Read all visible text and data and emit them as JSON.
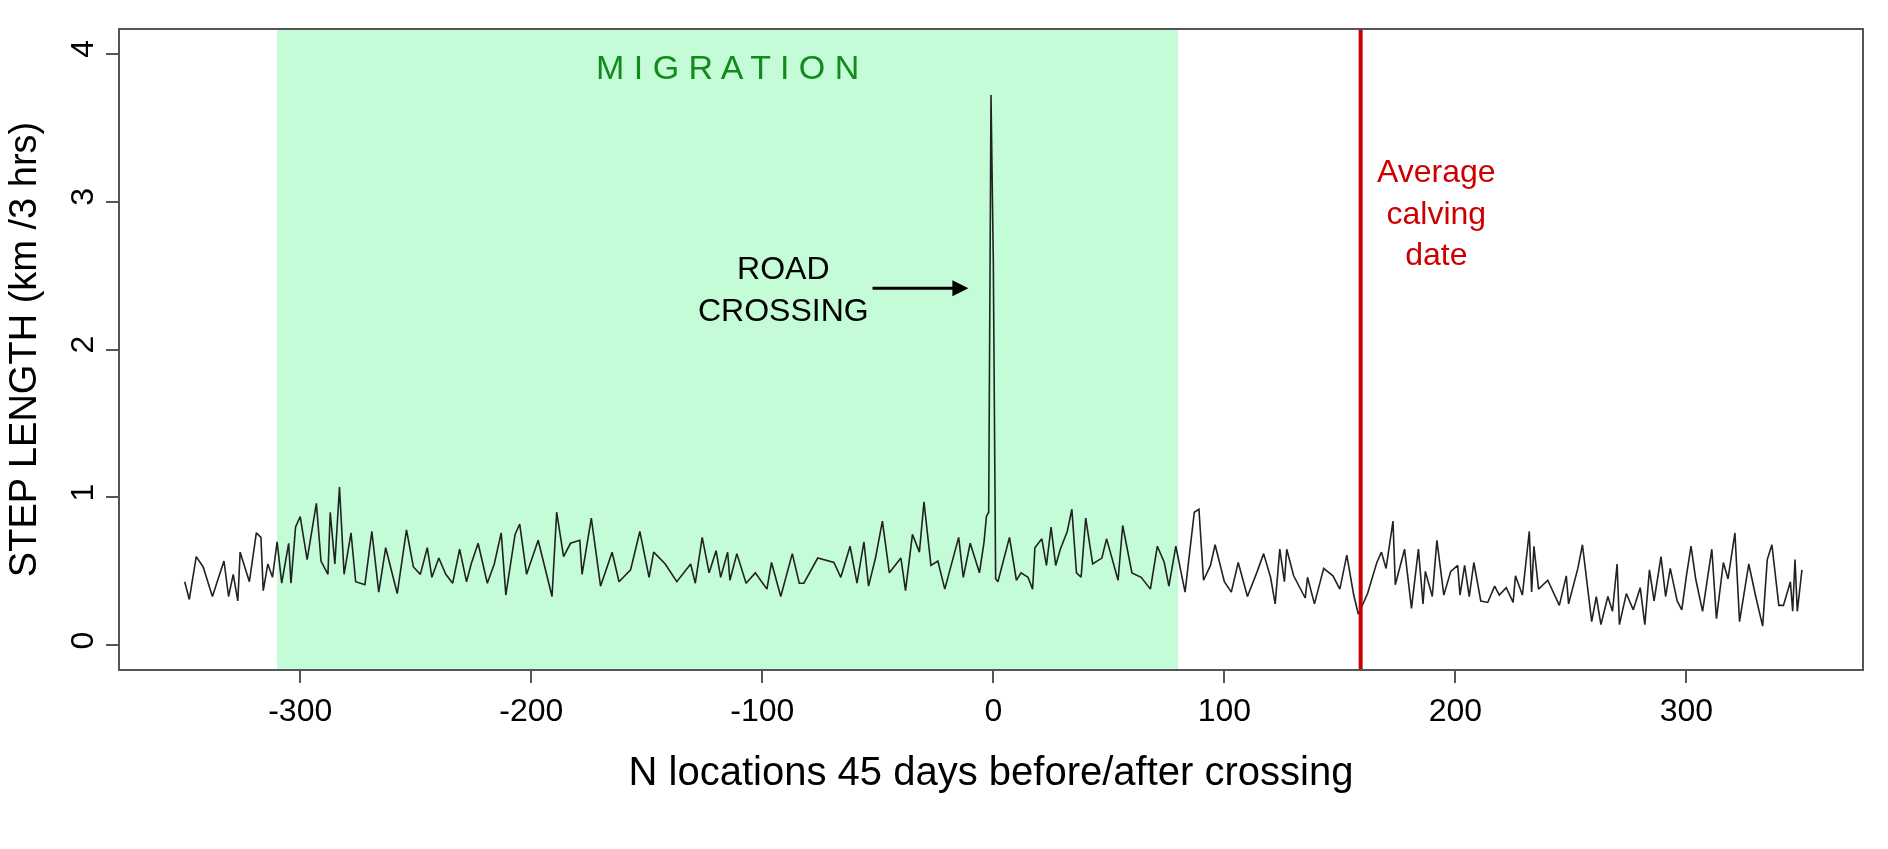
{
  "chart_data": {
    "type": "line",
    "xlabel": "N locations 45 days before/after crossing",
    "ylabel": "STEP LENGTH (km /3 hrs)",
    "xlim": [
      -378,
      376
    ],
    "xticks": [
      -300,
      -200,
      -100,
      0,
      100,
      200,
      300
    ],
    "ylim": [
      -0.16,
      4.16
    ],
    "yticks": [
      0,
      1,
      2,
      3,
      4
    ],
    "marker": "none",
    "line_style": "solid",
    "bands": [
      {
        "axis": "x",
        "from": -310,
        "to": 80,
        "label": "M I G R A T I O N",
        "color": "#c3fcd6"
      }
    ],
    "ref_lines": [
      {
        "axis": "x",
        "value": 159,
        "label": "Average\ncalving\ndate",
        "color": "#cc0000"
      }
    ],
    "annotations": [
      "ROAD\nCROSSING"
    ],
    "series": [
      {
        "color": "#222222",
        "x": [
          -350,
          -348,
          -345,
          -342,
          -338,
          -333,
          -331,
          -329,
          -327,
          -326,
          -322,
          -319,
          -317,
          -316,
          -314,
          -312,
          -310,
          -308,
          -305,
          -304,
          -302,
          -300,
          -297,
          -293,
          -291,
          -288,
          -287,
          -285,
          -283,
          -281,
          -278,
          -276,
          -272,
          -269,
          -266,
          -263,
          -258,
          -254,
          -251,
          -248,
          -245,
          -243,
          -240,
          -237,
          -234,
          -231,
          -228,
          -226,
          -223,
          -219,
          -216,
          -213,
          -211,
          -207,
          -205,
          -202,
          -197,
          -191,
          -189,
          -186,
          -183,
          -179,
          -178,
          -174,
          -170,
          -165,
          -162,
          -157,
          -153,
          -149,
          -147,
          -142,
          -137,
          -131,
          -129,
          -126,
          -123,
          -120,
          -118,
          -115,
          -114,
          -111,
          -107,
          -103,
          -98,
          -96,
          -92,
          -87,
          -84,
          -82,
          -76,
          -69,
          -66,
          -62,
          -59,
          -56,
          -54,
          -51,
          -48,
          -45,
          -40,
          -38,
          -35,
          -32,
          -30,
          -27,
          -24,
          -21,
          -15,
          -13,
          -10,
          -6,
          -4,
          -3,
          -2,
          -1,
          0,
          1,
          2,
          7,
          10,
          12,
          15,
          17,
          18,
          21,
          23,
          25,
          27,
          29,
          32,
          34,
          36,
          38,
          40,
          43,
          47,
          49,
          51,
          54,
          56,
          60,
          64,
          68,
          71,
          74,
          76,
          79,
          83,
          87,
          89,
          91,
          94,
          96,
          100,
          103,
          106,
          110,
          114,
          117,
          120,
          122,
          124,
          126,
          127,
          130,
          135,
          136,
          139,
          143,
          147,
          150,
          153,
          156,
          158,
          162,
          166,
          168,
          170,
          173,
          174,
          178,
          181,
          184,
          186,
          187,
          190,
          192,
          195,
          198,
          201,
          202,
          204,
          206,
          208,
          211,
          214,
          217,
          219,
          222,
          225,
          226,
          229,
          232,
          233,
          234,
          236,
          240,
          245,
          248,
          249,
          253,
          255,
          259,
          261,
          263,
          266,
          268,
          270,
          271,
          274,
          277,
          280,
          282,
          284,
          286,
          289,
          291,
          293,
          296,
          298,
          300,
          302,
          304,
          307,
          311,
          313,
          316,
          318,
          321,
          323,
          327,
          330,
          333,
          335,
          337,
          340,
          342,
          345,
          346,
          347,
          348,
          350
        ],
        "values": [
          0.43,
          0.31,
          0.6,
          0.53,
          0.33,
          0.57,
          0.33,
          0.48,
          0.3,
          0.63,
          0.43,
          0.76,
          0.73,
          0.37,
          0.55,
          0.46,
          0.7,
          0.42,
          0.69,
          0.42,
          0.8,
          0.87,
          0.58,
          0.96,
          0.57,
          0.48,
          0.9,
          0.55,
          1.07,
          0.48,
          0.76,
          0.43,
          0.41,
          0.77,
          0.36,
          0.66,
          0.35,
          0.78,
          0.53,
          0.48,
          0.66,
          0.46,
          0.59,
          0.48,
          0.42,
          0.65,
          0.43,
          0.55,
          0.69,
          0.42,
          0.55,
          0.76,
          0.34,
          0.75,
          0.82,
          0.48,
          0.71,
          0.33,
          0.9,
          0.6,
          0.69,
          0.71,
          0.48,
          0.86,
          0.4,
          0.63,
          0.43,
          0.51,
          0.77,
          0.46,
          0.63,
          0.55,
          0.43,
          0.55,
          0.42,
          0.73,
          0.49,
          0.64,
          0.46,
          0.63,
          0.44,
          0.62,
          0.42,
          0.49,
          0.38,
          0.56,
          0.33,
          0.62,
          0.42,
          0.42,
          0.59,
          0.56,
          0.46,
          0.67,
          0.42,
          0.7,
          0.4,
          0.59,
          0.84,
          0.49,
          0.59,
          0.37,
          0.75,
          0.63,
          0.97,
          0.54,
          0.57,
          0.38,
          0.73,
          0.46,
          0.69,
          0.49,
          0.7,
          0.87,
          0.9,
          3.72,
          2.6,
          0.45,
          0.43,
          0.73,
          0.44,
          0.49,
          0.46,
          0.38,
          0.66,
          0.72,
          0.54,
          0.8,
          0.54,
          0.65,
          0.77,
          0.92,
          0.49,
          0.46,
          0.86,
          0.55,
          0.59,
          0.72,
          0.61,
          0.44,
          0.81,
          0.49,
          0.46,
          0.38,
          0.67,
          0.56,
          0.4,
          0.67,
          0.36,
          0.9,
          0.92,
          0.44,
          0.54,
          0.68,
          0.43,
          0.36,
          0.56,
          0.33,
          0.49,
          0.62,
          0.46,
          0.28,
          0.65,
          0.43,
          0.65,
          0.47,
          0.32,
          0.46,
          0.28,
          0.52,
          0.47,
          0.38,
          0.61,
          0.34,
          0.21,
          0.35,
          0.56,
          0.63,
          0.52,
          0.84,
          0.41,
          0.65,
          0.25,
          0.65,
          0.28,
          0.5,
          0.33,
          0.71,
          0.34,
          0.5,
          0.54,
          0.34,
          0.54,
          0.33,
          0.56,
          0.3,
          0.29,
          0.4,
          0.34,
          0.39,
          0.29,
          0.47,
          0.34,
          0.77,
          0.36,
          0.67,
          0.38,
          0.44,
          0.27,
          0.47,
          0.28,
          0.52,
          0.68,
          0.16,
          0.33,
          0.14,
          0.33,
          0.23,
          0.55,
          0.14,
          0.35,
          0.24,
          0.39,
          0.14,
          0.51,
          0.3,
          0.6,
          0.33,
          0.52,
          0.3,
          0.24,
          0.47,
          0.67,
          0.45,
          0.23,
          0.65,
          0.18,
          0.56,
          0.45,
          0.76,
          0.16,
          0.55,
          0.33,
          0.13,
          0.58,
          0.68,
          0.27,
          0.27,
          0.43,
          0.23,
          0.58,
          0.23,
          0.51
        ]
      }
    ]
  }
}
